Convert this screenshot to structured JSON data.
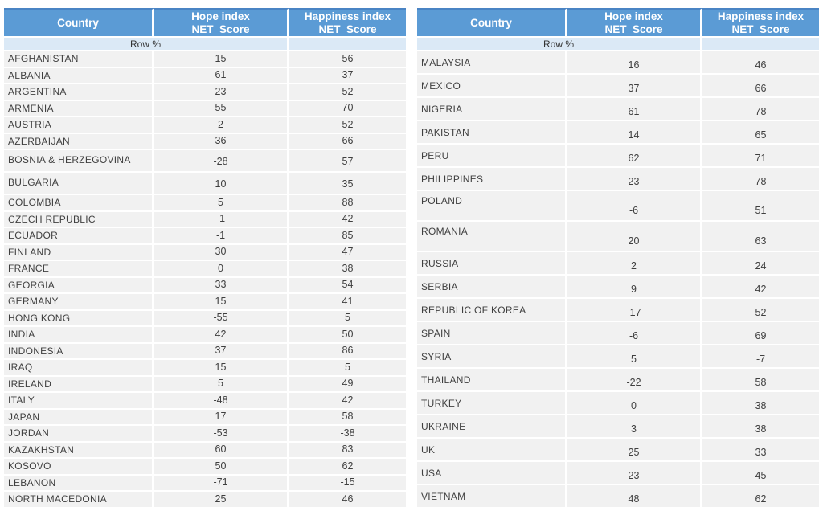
{
  "colors": {
    "header_bg": "#5b9bd5",
    "header_top_border": "#4a84c4",
    "header_text": "#ffffff",
    "subheader_bg": "#dbe9f6",
    "row_bg": "#f1f1f1",
    "body_text": "#3f3f3f"
  },
  "chart_data": [
    {
      "type": "table",
      "table_position": "left",
      "columns": [
        "Country",
        "Hope index\nNET  Score",
        "Happiness index\nNET  Score"
      ],
      "subheader": "Row %",
      "rows": [
        {
          "country": "AFGHANISTAN",
          "hope": 15,
          "happiness": 56
        },
        {
          "country": "ALBANIA",
          "hope": 61,
          "happiness": 37
        },
        {
          "country": "ARGENTINA",
          "hope": 23,
          "happiness": 52
        },
        {
          "country": "ARMENIA",
          "hope": 55,
          "happiness": 70
        },
        {
          "country": "AUSTRIA",
          "hope": 2,
          "happiness": 52
        },
        {
          "country": "AZERBAIJAN",
          "hope": 36,
          "happiness": 66
        },
        {
          "country": "BOSNIA & HERZEGOVINA",
          "hope": -28,
          "happiness": 57,
          "tall": true
        },
        {
          "country": "BULGARIA",
          "hope": 10,
          "happiness": 35,
          "tall": true
        },
        {
          "country": "COLOMBIA",
          "hope": 5,
          "happiness": 88
        },
        {
          "country": "CZECH REPUBLIC",
          "hope": -1,
          "happiness": 42
        },
        {
          "country": "ECUADOR",
          "hope": -1,
          "happiness": 85
        },
        {
          "country": "FINLAND",
          "hope": 30,
          "happiness": 47
        },
        {
          "country": "FRANCE",
          "hope": 0,
          "happiness": 38
        },
        {
          "country": "GEORGIA",
          "hope": 33,
          "happiness": 54
        },
        {
          "country": "GERMANY",
          "hope": 15,
          "happiness": 41
        },
        {
          "country": "HONG KONG",
          "hope": -55,
          "happiness": 5
        },
        {
          "country": "INDIA",
          "hope": 42,
          "happiness": 50
        },
        {
          "country": "INDONESIA",
          "hope": 37,
          "happiness": 86
        },
        {
          "country": "IRAQ",
          "hope": 15,
          "happiness": 5
        },
        {
          "country": "IRELAND",
          "hope": 5,
          "happiness": 49
        },
        {
          "country": "ITALY",
          "hope": -48,
          "happiness": 42
        },
        {
          "country": "JAPAN",
          "hope": 17,
          "happiness": 58
        },
        {
          "country": "JORDAN",
          "hope": -53,
          "happiness": -38
        },
        {
          "country": "KAZAKHSTAN",
          "hope": 60,
          "happiness": 83
        },
        {
          "country": "KOSOVO",
          "hope": 50,
          "happiness": 62
        },
        {
          "country": "LEBANON",
          "hope": -71,
          "happiness": -15
        },
        {
          "country": "NORTH MACEDONIA",
          "hope": 25,
          "happiness": 46
        }
      ]
    },
    {
      "type": "table",
      "table_position": "right",
      "columns": [
        "Country",
        "Hope index\nNET  Score",
        "Happiness index\nNET  Score"
      ],
      "subheader": "Row %",
      "rows": [
        {
          "country": "MALAYSIA",
          "hope": 16,
          "happiness": 46
        },
        {
          "country": "MEXICO",
          "hope": 37,
          "happiness": 66
        },
        {
          "country": "NIGERIA",
          "hope": 61,
          "happiness": 78
        },
        {
          "country": "PAKISTAN",
          "hope": 14,
          "happiness": 65
        },
        {
          "country": "PERU",
          "hope": 62,
          "happiness": 71
        },
        {
          "country": "PHILIPPINES",
          "hope": 23,
          "happiness": 78
        },
        {
          "country": "POLAND",
          "hope": -6,
          "happiness": 51,
          "tall": true
        },
        {
          "country": "ROMANIA",
          "hope": 20,
          "happiness": 63,
          "tall": true
        },
        {
          "country": "RUSSIA",
          "hope": 2,
          "happiness": 24
        },
        {
          "country": "SERBIA",
          "hope": 9,
          "happiness": 42
        },
        {
          "country": "REPUBLIC OF KOREA",
          "hope": -17,
          "happiness": 52
        },
        {
          "country": "SPAIN",
          "hope": -6,
          "happiness": 69
        },
        {
          "country": "SYRIA",
          "hope": 5,
          "happiness": -7
        },
        {
          "country": "THAILAND",
          "hope": -22,
          "happiness": 58
        },
        {
          "country": "TURKEY",
          "hope": 0,
          "happiness": 38
        },
        {
          "country": "UKRAINE",
          "hope": 3,
          "happiness": 38
        },
        {
          "country": "UK",
          "hope": 25,
          "happiness": 33
        },
        {
          "country": "USA",
          "hope": 23,
          "happiness": 45
        },
        {
          "country": "VIETNAM",
          "hope": 48,
          "happiness": 62
        }
      ]
    }
  ]
}
